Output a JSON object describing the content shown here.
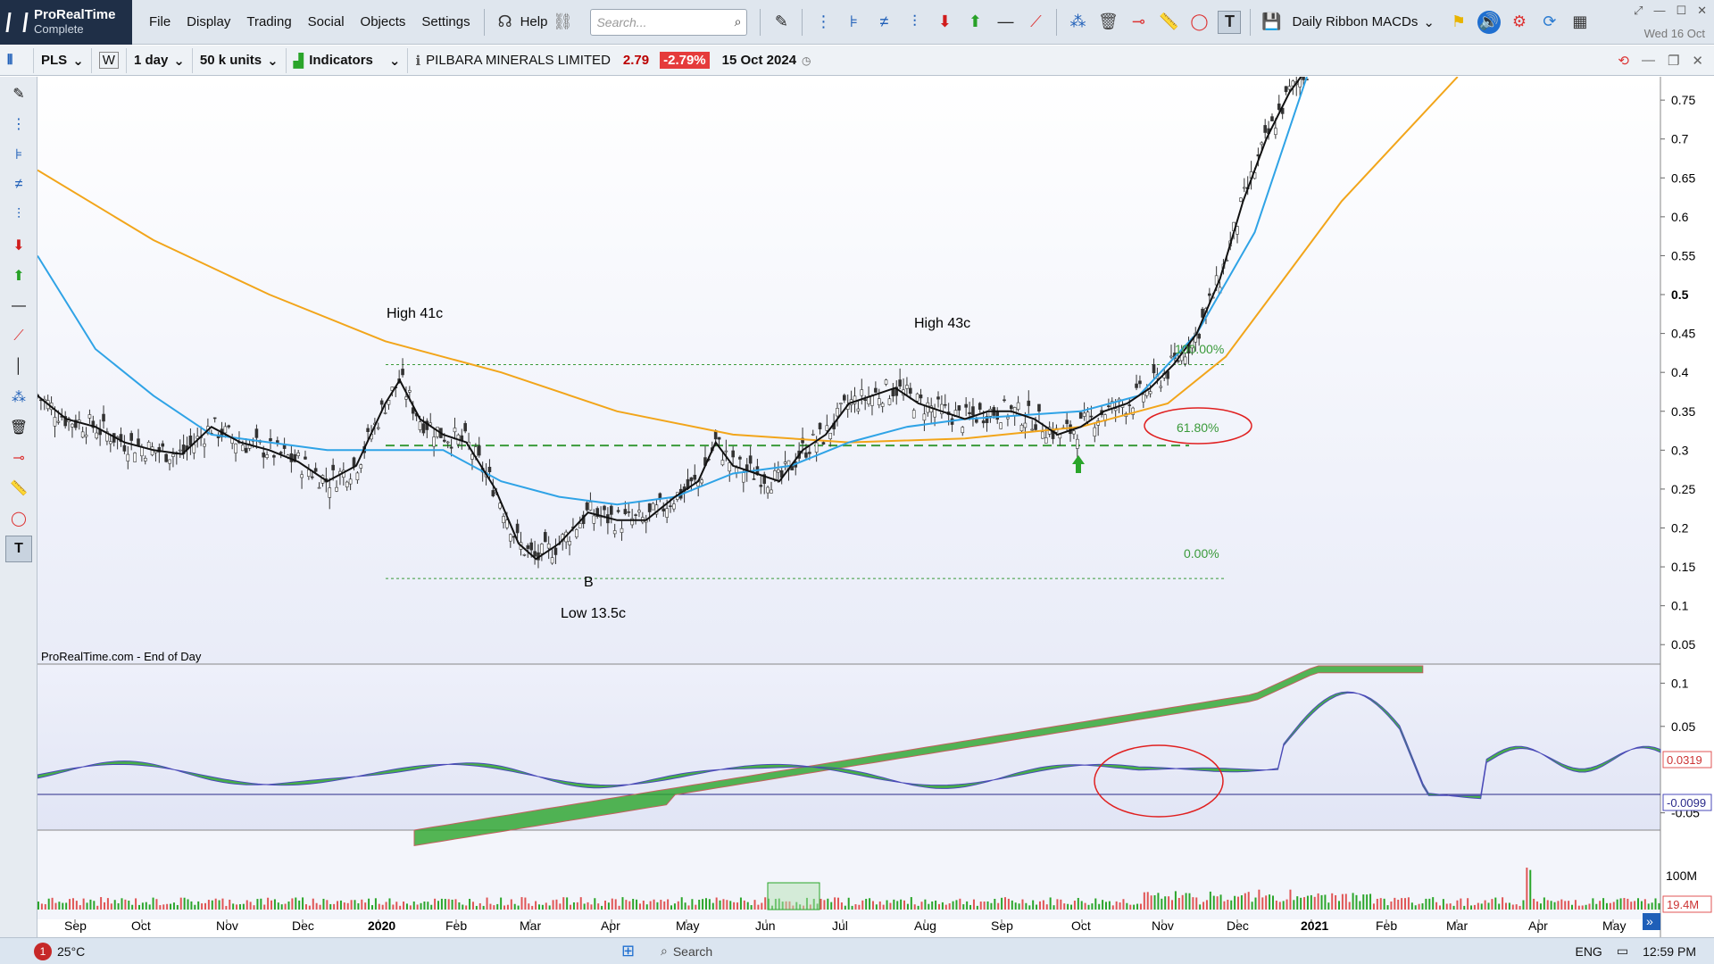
{
  "app": {
    "logo_name": "ProRealTime",
    "logo_sub": "Complete",
    "menu": [
      "File",
      "Display",
      "Trading",
      "Social",
      "Objects",
      "Settings"
    ],
    "help": "Help",
    "search_placeholder": "Search...",
    "workspace": "Daily Ribbon MACDs",
    "date": "Wed 16 Oct"
  },
  "toolbar2": {
    "symbol": "PLS",
    "period_w": "W",
    "interval": "1 day",
    "units": "50 k units",
    "indicators": "Indicators",
    "instrument": "PILBARA MINERALS LIMITED",
    "price": "2.79",
    "change": "-2.79%",
    "quote_date": "15 Oct 2024"
  },
  "chart_data": {
    "type": "line",
    "x_months": [
      "Sep",
      "Oct",
      "Nov",
      "Dec",
      "2020",
      "Feb",
      "Mar",
      "Apr",
      "May",
      "Jun",
      "Jul",
      "Aug",
      "Sep",
      "Oct",
      "Nov",
      "Dec",
      "2021",
      "Feb",
      "Mar",
      "Apr",
      "May"
    ],
    "price_axis": [
      "0.75",
      "0.7",
      "0.65",
      "0.6",
      "0.55",
      "0.5",
      "0.45",
      "0.4",
      "0.35",
      "0.3",
      "0.25",
      "0.2",
      "0.15",
      "0.1",
      "0.05"
    ],
    "price_ylim": [
      0.025,
      0.78
    ],
    "annotations": {
      "high1": "High 41c",
      "high2": "High 43c",
      "low_label": "B",
      "low": "Low 13.5c",
      "fib_100": "100.00%",
      "fib_618": "61.80%",
      "fib_0": "0.00%",
      "source": "ProRealTime.com - End of Day"
    },
    "fib_levels": {
      "high": 0.41,
      "618": 0.306,
      "low": 0.135
    },
    "close_series": {
      "name": "",
      "points": [
        [
          0,
          0.37
        ],
        [
          10,
          0.34
        ],
        [
          20,
          0.33
        ],
        [
          30,
          0.31
        ],
        [
          40,
          0.3
        ],
        [
          50,
          0.295
        ],
        [
          60,
          0.33
        ],
        [
          70,
          0.31
        ],
        [
          80,
          0.3
        ],
        [
          90,
          0.285
        ],
        [
          100,
          0.26
        ],
        [
          110,
          0.28
        ],
        [
          120,
          0.36
        ],
        [
          125,
          0.39
        ],
        [
          132,
          0.34
        ],
        [
          140,
          0.32
        ],
        [
          148,
          0.31
        ],
        [
          158,
          0.25
        ],
        [
          166,
          0.18
        ],
        [
          172,
          0.16
        ],
        [
          180,
          0.18
        ],
        [
          190,
          0.22
        ],
        [
          200,
          0.21
        ],
        [
          210,
          0.21
        ],
        [
          220,
          0.24
        ],
        [
          228,
          0.26
        ],
        [
          234,
          0.31
        ],
        [
          240,
          0.28
        ],
        [
          248,
          0.27
        ],
        [
          256,
          0.26
        ],
        [
          264,
          0.3
        ],
        [
          272,
          0.32
        ],
        [
          280,
          0.36
        ],
        [
          288,
          0.37
        ],
        [
          296,
          0.38
        ],
        [
          304,
          0.36
        ],
        [
          312,
          0.35
        ],
        [
          320,
          0.34
        ],
        [
          328,
          0.35
        ],
        [
          336,
          0.35
        ],
        [
          344,
          0.34
        ],
        [
          352,
          0.32
        ],
        [
          360,
          0.33
        ],
        [
          368,
          0.35
        ],
        [
          376,
          0.36
        ],
        [
          384,
          0.38
        ],
        [
          392,
          0.41
        ],
        [
          400,
          0.45
        ],
        [
          408,
          0.52
        ],
        [
          416,
          0.62
        ],
        [
          424,
          0.7
        ],
        [
          432,
          0.76
        ],
        [
          438,
          0.79
        ]
      ]
    },
    "ma_fast": {
      "name": "",
      "points": [
        [
          0,
          0.55
        ],
        [
          20,
          0.43
        ],
        [
          40,
          0.37
        ],
        [
          60,
          0.32
        ],
        [
          80,
          0.31
        ],
        [
          100,
          0.3
        ],
        [
          120,
          0.3
        ],
        [
          140,
          0.3
        ],
        [
          160,
          0.26
        ],
        [
          180,
          0.24
        ],
        [
          200,
          0.23
        ],
        [
          220,
          0.24
        ],
        [
          240,
          0.27
        ],
        [
          260,
          0.28
        ],
        [
          280,
          0.31
        ],
        [
          300,
          0.33
        ],
        [
          320,
          0.34
        ],
        [
          340,
          0.345
        ],
        [
          360,
          0.35
        ],
        [
          380,
          0.37
        ],
        [
          400,
          0.45
        ],
        [
          420,
          0.58
        ],
        [
          438,
          0.78
        ]
      ]
    },
    "ma_slow": {
      "name": "",
      "points": [
        [
          0,
          0.66
        ],
        [
          40,
          0.57
        ],
        [
          80,
          0.5
        ],
        [
          120,
          0.44
        ],
        [
          160,
          0.4
        ],
        [
          200,
          0.35
        ],
        [
          240,
          0.32
        ],
        [
          280,
          0.31
        ],
        [
          320,
          0.315
        ],
        [
          360,
          0.33
        ],
        [
          390,
          0.36
        ],
        [
          410,
          0.42
        ],
        [
          430,
          0.52
        ],
        [
          450,
          0.62
        ],
        [
          470,
          0.7
        ],
        [
          490,
          0.78
        ]
      ]
    },
    "macd_axis": [
      "0.1",
      "0.05",
      "-0.05"
    ],
    "macd_ylim": [
      -0.07,
      0.12
    ],
    "macd_values": {
      "current": "0.0319",
      "signal": "-0.0099"
    },
    "volume_axis": "100M",
    "volume_value": "19.4M"
  },
  "taskbar": {
    "weather_badge": "1",
    "temperature": "25°C",
    "search": "Search",
    "lang": "ENG",
    "time": "12:59 PM"
  },
  "colors": {
    "up": "#2aa52a",
    "down": "#e05555",
    "ma_fast": "#2fa3e6",
    "ma_slow": "#f2a51a",
    "close": "#111111",
    "fib": "#3a9a3a",
    "circle": "#e02020"
  }
}
